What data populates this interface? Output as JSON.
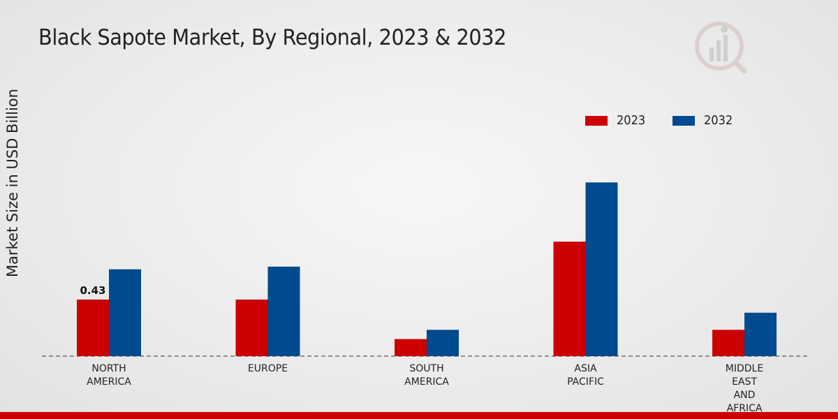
{
  "title": "Black Sapote Market, By Regional, 2023 & 2032",
  "colors": {
    "2023": "#cc0000",
    "2032": "#004a8f",
    "bottom_bar": "#cc0000"
  },
  "chart_data": {
    "type": "bar",
    "title": "Black Sapote Market, By Regional, 2023 & 2032",
    "xlabel": "",
    "ylabel": "Market Size in USD Billion",
    "categories": [
      "NORTH\nAMERICA",
      "EUROPE",
      "SOUTH\nAMERICA",
      "ASIA\nPACIFIC",
      "MIDDLE\nEAST\nAND\nAFRICA"
    ],
    "series": [
      {
        "name": "2023",
        "values": [
          0.43,
          0.43,
          0.13,
          0.87,
          0.2
        ]
      },
      {
        "name": "2032",
        "values": [
          0.66,
          0.68,
          0.2,
          1.32,
          0.33
        ]
      }
    ],
    "data_labels": [
      {
        "series": 0,
        "index": 0,
        "text": "0.43"
      }
    ],
    "ylim": [
      0,
      2.6
    ],
    "grid": false,
    "legend_position": "top-right"
  }
}
